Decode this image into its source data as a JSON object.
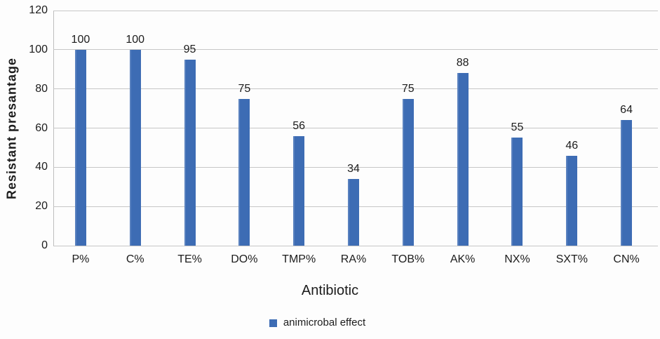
{
  "chart_data": {
    "type": "bar",
    "categories": [
      "P%",
      "C%",
      "TE%",
      "DO%",
      "TMP%",
      "RA%",
      "TOB%",
      "AK%",
      "NX%",
      "SXT%",
      "CN%"
    ],
    "values": [
      100,
      100,
      95,
      75,
      56,
      34,
      75,
      88,
      55,
      46,
      64
    ],
    "series_name": "animicrobal effect",
    "xlabel": "Antibiotic",
    "ylabel": "Resistant presantage",
    "ylim": [
      0,
      120
    ],
    "yticks": [
      0,
      20,
      40,
      60,
      80,
      100,
      120
    ],
    "grid": true,
    "data_labels": true,
    "legend_position": "bottom",
    "bar_color": "#3d6cb4",
    "gridline_color": "#c7c7c7",
    "text_color": "#1c1c1c",
    "background": "#fdfdfd"
  }
}
